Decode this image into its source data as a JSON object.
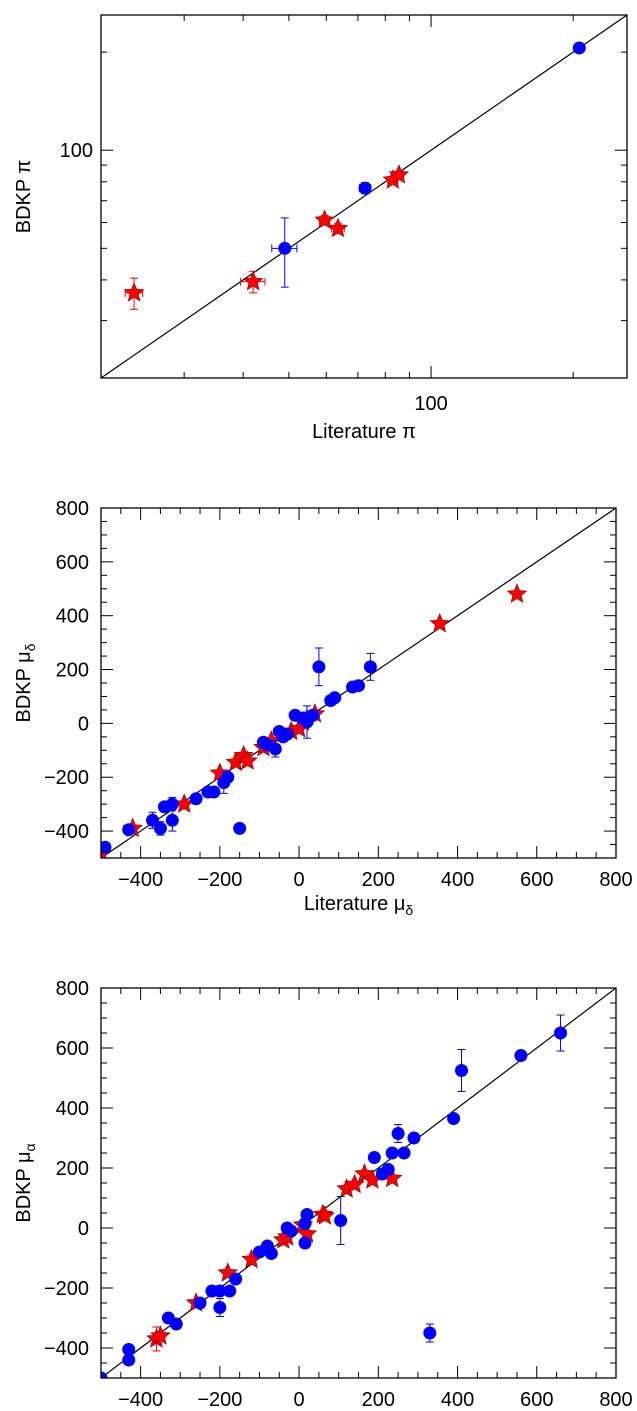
{
  "colors": {
    "literature_only": "#ff0000",
    "bdkp_only": "#0000ff",
    "axes": "#000000"
  },
  "chart_data": [
    {
      "type": "scatter",
      "scale": "log",
      "xlabel": "Literature π",
      "ylabel": "BDKP π",
      "xlim": [
        20,
        260
      ],
      "ylim": [
        20,
        260
      ],
      "x_tick_labels": [
        "100"
      ],
      "y_tick_labels": [
        "100"
      ],
      "one_to_one_line": true,
      "series": [
        {
          "marker": "star",
          "color": "#ff0000",
          "points": [
            {
              "x": 23.5,
              "y": 36.5,
              "xerr": 1.0,
              "yerr": 4.0
            },
            {
              "x": 42.0,
              "y": 39.5,
              "xerr": 2.5,
              "yerr": 3.0
            },
            {
              "x": 59.5,
              "y": 61.0,
              "xerr": 1.5,
              "yerr": 2.0
            },
            {
              "x": 63.5,
              "y": 57.5,
              "xerr": 2.0,
              "yerr": 2.0
            },
            {
              "x": 83.0,
              "y": 81.0,
              "xerr": 2.0,
              "yerr": 2.0
            },
            {
              "x": 85.5,
              "y": 84.0,
              "xerr": 2.0,
              "yerr": 2.0
            }
          ]
        },
        {
          "marker": "circle",
          "color": "#0000ff",
          "points": [
            {
              "x": 49.0,
              "y": 50.0,
              "xerr": 3.0,
              "yerr": 12.0
            },
            {
              "x": 72.5,
              "y": 76.5,
              "xerr": 2.0,
              "yerr": 3.0
            },
            {
              "x": 206.0,
              "y": 206.0,
              "xerr": 2.0,
              "yerr": 3.0
            }
          ]
        }
      ]
    },
    {
      "type": "scatter",
      "xlabel": "Literature μ_δ",
      "ylabel": "BDKP μ_δ",
      "xlim": [
        -500,
        800
      ],
      "ylim": [
        -500,
        800
      ],
      "x_ticks": [
        -400,
        -200,
        0,
        200,
        400,
        600,
        800
      ],
      "y_ticks": [
        -400,
        -200,
        0,
        200,
        400,
        600,
        800
      ],
      "x_tick_labels": [
        "−400",
        "−200",
        "0",
        "200",
        "400",
        "600",
        "800"
      ],
      "y_tick_labels": [
        "−400",
        "−200",
        "0",
        "200",
        "400",
        "600",
        "800"
      ],
      "one_to_one_line": true,
      "series": [
        {
          "marker": "star",
          "color": "#ff0000",
          "points": [
            {
              "x": -500,
              "y": -485
            },
            {
              "x": -420,
              "y": -390
            },
            {
              "x": -290,
              "y": -300
            },
            {
              "x": -200,
              "y": -185
            },
            {
              "x": -160,
              "y": -145
            },
            {
              "x": -140,
              "y": -120
            },
            {
              "x": -130,
              "y": -140
            },
            {
              "x": -90,
              "y": -90
            },
            {
              "x": -70,
              "y": -65
            },
            {
              "x": -20,
              "y": -30
            },
            {
              "x": 0,
              "y": -20
            },
            {
              "x": 10,
              "y": 5
            },
            {
              "x": 40,
              "y": 35
            },
            {
              "x": 355,
              "y": 370
            },
            {
              "x": 550,
              "y": 480
            }
          ]
        },
        {
          "marker": "circle",
          "color": "#0000ff",
          "points": [
            {
              "x": -490,
              "y": -460
            },
            {
              "x": -430,
              "y": -395
            },
            {
              "x": -370,
              "y": -360,
              "yerr": 30
            },
            {
              "x": -350,
              "y": -390,
              "yerr": 25
            },
            {
              "x": -340,
              "y": -310
            },
            {
              "x": -320,
              "y": -300,
              "yerr": 25
            },
            {
              "x": -320,
              "y": -360,
              "yerr": 40
            },
            {
              "x": -260,
              "y": -280
            },
            {
              "x": -230,
              "y": -255
            },
            {
              "x": -215,
              "y": -255
            },
            {
              "x": -190,
              "y": -220,
              "yerr": 40
            },
            {
              "x": -180,
              "y": -200
            },
            {
              "x": -150,
              "y": -390
            },
            {
              "x": -90,
              "y": -70
            },
            {
              "x": -80,
              "y": -80
            },
            {
              "x": -60,
              "y": -95,
              "yerr": 30
            },
            {
              "x": -50,
              "y": -30
            },
            {
              "x": -40,
              "y": -50
            },
            {
              "x": -30,
              "y": -40
            },
            {
              "x": -10,
              "y": 30
            },
            {
              "x": 10,
              "y": 20
            },
            {
              "x": 20,
              "y": 5,
              "yerr": 60
            },
            {
              "x": 25,
              "y": 20
            },
            {
              "x": 35,
              "y": 30
            },
            {
              "x": 50,
              "y": 210,
              "yerr": 70
            },
            {
              "x": 80,
              "y": 85
            },
            {
              "x": 90,
              "y": 95
            },
            {
              "x": 135,
              "y": 135
            },
            {
              "x": 150,
              "y": 140
            },
            {
              "x": 180,
              "y": 210,
              "yerr": 50
            }
          ]
        }
      ]
    },
    {
      "type": "scatter",
      "xlabel": "Literature μ_α",
      "ylabel": "BDKP μ_α",
      "xlim": [
        -500,
        800
      ],
      "ylim": [
        -500,
        800
      ],
      "x_ticks": [
        -400,
        -200,
        0,
        200,
        400,
        600,
        800
      ],
      "y_ticks": [
        -400,
        -200,
        0,
        200,
        400,
        600,
        800
      ],
      "x_tick_labels": [
        "−400",
        "−200",
        "0",
        "200",
        "400",
        "600",
        "800"
      ],
      "y_tick_labels": [
        "−400",
        "−200",
        "0",
        "200",
        "400",
        "600",
        "800"
      ],
      "one_to_one_line": true,
      "series": [
        {
          "marker": "star",
          "color": "#ff0000",
          "points": [
            {
              "x": -360,
              "y": -370,
              "yerr": 40
            },
            {
              "x": -350,
              "y": -360
            },
            {
              "x": -260,
              "y": -250
            },
            {
              "x": -180,
              "y": -150
            },
            {
              "x": -120,
              "y": -105
            },
            {
              "x": -40,
              "y": -40
            },
            {
              "x": -30,
              "y": -30
            },
            {
              "x": 10,
              "y": 10
            },
            {
              "x": 20,
              "y": -20
            },
            {
              "x": 60,
              "y": 45
            },
            {
              "x": 65,
              "y": 40
            },
            {
              "x": 120,
              "y": 130
            },
            {
              "x": 140,
              "y": 145
            },
            {
              "x": 165,
              "y": 180
            },
            {
              "x": 185,
              "y": 160
            },
            {
              "x": 235,
              "y": 165
            }
          ]
        },
        {
          "marker": "circle",
          "color": "#0000ff",
          "points": [
            {
              "x": -500,
              "y": -500
            },
            {
              "x": -430,
              "y": -440
            },
            {
              "x": -430,
              "y": -405
            },
            {
              "x": -330,
              "y": -300
            },
            {
              "x": -310,
              "y": -320
            },
            {
              "x": -250,
              "y": -250
            },
            {
              "x": -220,
              "y": -210
            },
            {
              "x": -200,
              "y": -210
            },
            {
              "x": -200,
              "y": -265,
              "yerr": 30
            },
            {
              "x": -175,
              "y": -210
            },
            {
              "x": -160,
              "y": -170
            },
            {
              "x": -100,
              "y": -80
            },
            {
              "x": -80,
              "y": -60
            },
            {
              "x": -70,
              "y": -85
            },
            {
              "x": -30,
              "y": 0
            },
            {
              "x": -20,
              "y": -10
            },
            {
              "x": 20,
              "y": 45
            },
            {
              "x": 15,
              "y": 15
            },
            {
              "x": 15,
              "y": -50
            },
            {
              "x": 105,
              "y": 25,
              "yerr": 80
            },
            {
              "x": 190,
              "y": 235
            },
            {
              "x": 210,
              "y": 180
            },
            {
              "x": 225,
              "y": 195
            },
            {
              "x": 235,
              "y": 250
            },
            {
              "x": 250,
              "y": 315,
              "yerr": 30
            },
            {
              "x": 265,
              "y": 250
            },
            {
              "x": 290,
              "y": 300
            },
            {
              "x": 330,
              "y": -350,
              "yerr": 30
            },
            {
              "x": 390,
              "y": 365
            },
            {
              "x": 410,
              "y": 525,
              "yerr": 70
            },
            {
              "x": 560,
              "y": 575
            },
            {
              "x": 660,
              "y": 650,
              "yerr": 60
            }
          ]
        }
      ]
    }
  ]
}
